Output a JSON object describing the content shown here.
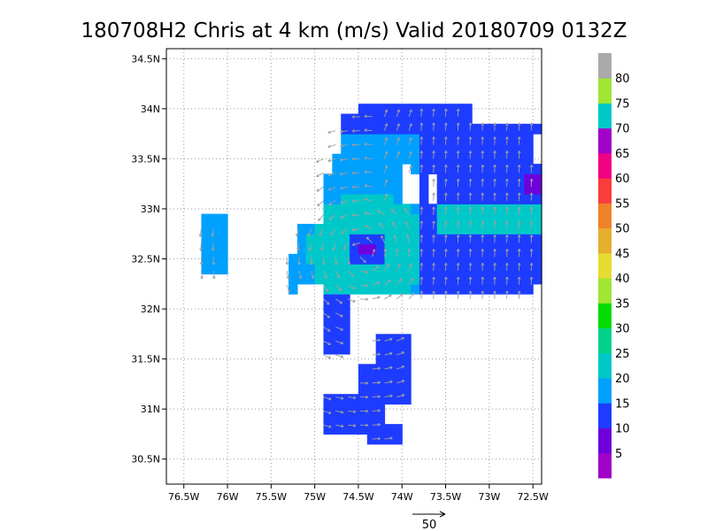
{
  "chart_data": {
    "type": "heatmap",
    "title": "180708H2 Chris at 4 km (m/s) Valid 20180709 0132Z",
    "x_ticks": [
      "76.5W",
      "76W",
      "75.5W",
      "75W",
      "74.5W",
      "74W",
      "73.5W",
      "73W",
      "72.5W"
    ],
    "x_tick_values": [
      -76.5,
      -76.0,
      -75.5,
      -75.0,
      -74.5,
      -74.0,
      -73.5,
      -73.0,
      -72.5
    ],
    "y_ticks": [
      "30.5N",
      "31N",
      "31.5N",
      "32N",
      "32.5N",
      "33N",
      "33.5N",
      "34N",
      "34.5N"
    ],
    "y_tick_values": [
      30.5,
      31.0,
      31.5,
      32.0,
      32.5,
      33.0,
      33.5,
      34.0,
      34.5
    ],
    "xlim": [
      -76.7,
      -72.4
    ],
    "ylim": [
      30.25,
      34.6
    ],
    "grid": true,
    "storm_center": {
      "lon": -74.45,
      "lat": 32.55
    },
    "colorbar": {
      "labels": [
        "5",
        "10",
        "15",
        "20",
        "25",
        "30",
        "35",
        "40",
        "45",
        "50",
        "55",
        "60",
        "65",
        "70",
        "75",
        "80"
      ],
      "colors": [
        "#a000c8",
        "#6e00dc",
        "#1e3cff",
        "#00a0ff",
        "#00c8c8",
        "#00d28c",
        "#00dc00",
        "#a0e632",
        "#e6dc32",
        "#e6af2d",
        "#f08228",
        "#fa3c3c",
        "#f00082",
        "#a000c8",
        "#00c8c8",
        "#a0e632",
        "#aaaaaa"
      ]
    },
    "wind_reference": {
      "label": "50",
      "speed": 50
    }
  }
}
